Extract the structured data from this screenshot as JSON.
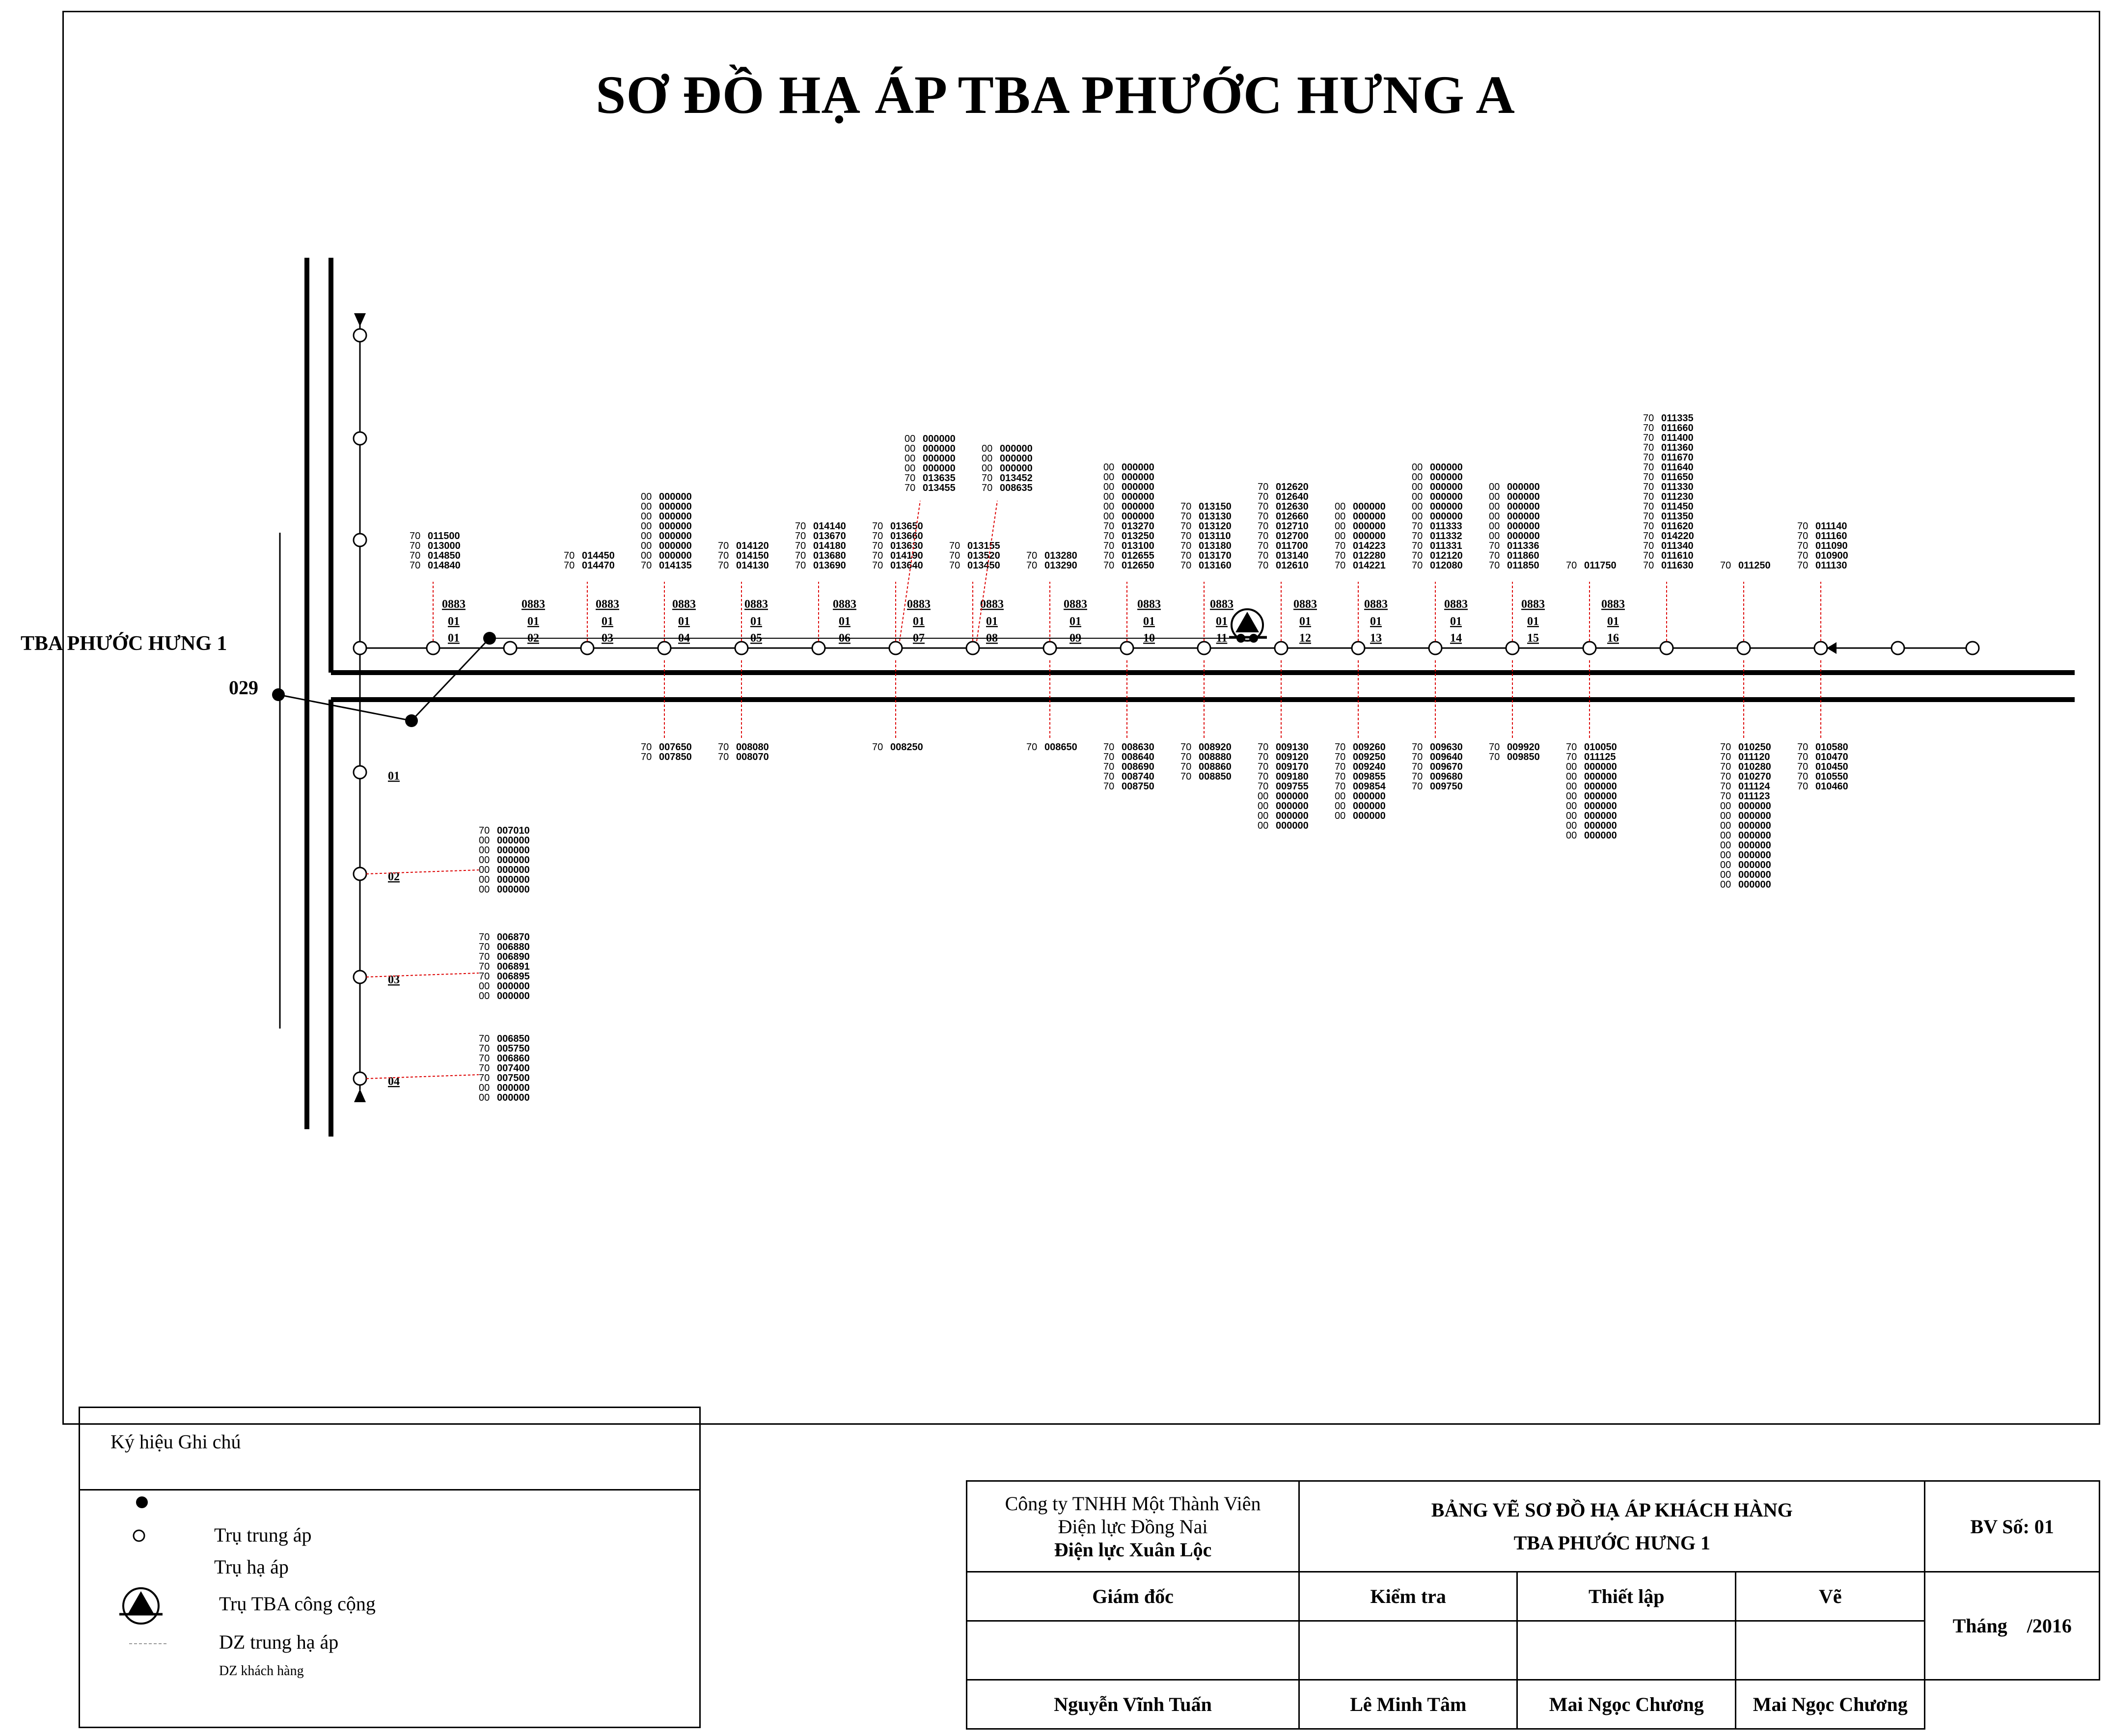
{
  "title": "SƠ ĐỒ HẠ ÁP TBA PHƯỚC HƯNG A",
  "station_label": "TBA PHƯỚC HƯNG 1",
  "feeder_label": "029",
  "pole_code": "0883",
  "pole_group": "01",
  "top_poles": [
    {
      "num": "01",
      "above": [
        "70 011500",
        "70 013000",
        "70 014850",
        "70 014840"
      ],
      "below": []
    },
    {
      "num": "02",
      "above": [],
      "below": []
    },
    {
      "num": "03",
      "above": [
        "70 014450",
        "70 014470"
      ],
      "below": []
    },
    {
      "num": "04",
      "above": [
        "00 000000",
        "00 000000",
        "00 000000",
        "00 000000",
        "00 000000",
        "00 000000",
        "00 000000",
        "70 014135"
      ],
      "below": [
        "70 007650",
        "70 007850"
      ]
    },
    {
      "num": "05",
      "above": [
        "70 014120",
        "70 014150",
        "70 014130"
      ],
      "below": [
        "70 008080",
        "70 008070"
      ]
    },
    {
      "num": "06",
      "above": [
        "70 014140",
        "70 013670",
        "70 014180",
        "70 013680",
        "70 013690"
      ],
      "below": []
    },
    {
      "num": "07",
      "above": [
        "70 013650",
        "70 013660",
        "70 013630",
        "70 014190",
        "70 013640"
      ],
      "above2": [
        "00 000000",
        "00 000000",
        "00 000000",
        "00 000000",
        "70 013635",
        "70 013455"
      ],
      "below": [
        "70 008250"
      ]
    },
    {
      "num": "08",
      "above": [
        "70 013155",
        "70 013520",
        "70 013450"
      ],
      "above2": [
        "00 000000",
        "00 000000",
        "00 000000",
        "70 013452",
        "70 008635"
      ],
      "below": []
    },
    {
      "num": "09",
      "above": [
        "70 013280",
        "70 013290"
      ],
      "below": [
        "70 008650"
      ]
    },
    {
      "num": "10",
      "above": [
        "00 000000",
        "00 000000",
        "00 000000",
        "00 000000",
        "00 000000",
        "00 000000",
        "70 013270",
        "70 013250",
        "70 013100",
        "70 012655",
        "70 012650"
      ],
      "below": [
        "70 008630",
        "70 008640",
        "70 008690",
        "70 008740",
        "70 008750"
      ]
    },
    {
      "num": "11",
      "above": [
        "70 013150",
        "70 013130",
        "70 013120",
        "70 013110",
        "70 013180",
        "70 013170",
        "70 013160"
      ],
      "below": [
        "70 008920",
        "70 008880",
        "70 008860",
        "70 008850"
      ]
    },
    {
      "num": "12",
      "above": [
        "70 012620",
        "70 012640",
        "70 012630",
        "70 012660",
        "70 012710",
        "70 012700",
        "70 011700",
        "70 013140",
        "70 012610"
      ],
      "below": [
        "70 009130",
        "70 009120",
        "70 009170",
        "70 009180",
        "70 009755",
        "00 000000",
        "00 000000",
        "00 000000",
        "00 000000"
      ]
    },
    {
      "num": "13",
      "above": [
        "00 000000",
        "00 000000",
        "00 000000",
        "00 000000",
        "70 014223",
        "70 012280",
        "70 014221"
      ],
      "below": [
        "70 009260",
        "70 009250",
        "70 009240",
        "70 009855",
        "70 009854",
        "00 000000",
        "00 000000",
        "00 000000"
      ]
    },
    {
      "num": "14",
      "above": [
        "00 000000",
        "00 000000",
        "00 000000",
        "00 000000",
        "00 000000",
        "00 000000",
        "70 011333",
        "70 011332",
        "70 011331",
        "70 012120",
        "70 012080"
      ],
      "below": [
        "70 009630",
        "70 009640",
        "70 009670",
        "70 009680",
        "70 009750"
      ]
    },
    {
      "num": "15",
      "above": [
        "00 000000",
        "00 000000",
        "00 000000",
        "00 000000",
        "00 000000",
        "00 000000",
        "70 011336",
        "70 011860",
        "70 011850"
      ],
      "below": [
        "70 009920",
        "70 009850"
      ]
    },
    {
      "num": "16",
      "above": [
        "70 011750"
      ],
      "below": [
        "70 010050",
        "70 011125",
        "00 000000",
        "00 000000",
        "00 000000",
        "00 000000",
        "00 000000",
        "00 000000",
        "00 000000",
        "00 000000"
      ]
    },
    {
      "num": "",
      "above": [
        "70 011335",
        "70 011660",
        "70 011400",
        "70 011360",
        "70 011670",
        "70 011640",
        "70 011650",
        "70 011330",
        "70 011230",
        "70 011450",
        "70 011350",
        "70 011620",
        "70 014220",
        "70 011340",
        "70 011610",
        "70 011630"
      ],
      "below": []
    },
    {
      "num": "",
      "above": [
        "70 011250"
      ],
      "below": [
        "70 010250",
        "70 011120",
        "70 010280",
        "70 010270",
        "70 011124",
        "70 011123",
        "00 000000",
        "00 000000",
        "00 000000",
        "00 000000",
        "00 000000",
        "00 000000",
        "00 000000",
        "00 000000",
        "00 000000"
      ]
    },
    {
      "num": "",
      "above": [
        "70 011140",
        "70 011160",
        "70 011090",
        "70 010900",
        "70 011130"
      ],
      "below": [
        "70 010580",
        "70 010470",
        "70 010450",
        "70 010550",
        "70 010460"
      ]
    }
  ],
  "left_poles": [
    {
      "num": "01",
      "meters": []
    },
    {
      "num": "02",
      "meters": [
        "70 007010",
        "00 000000",
        "00 000000",
        "00 000000",
        "00 000000",
        "00 000000",
        "00 000000"
      ]
    },
    {
      "num": "03",
      "meters": [
        "70 006870",
        "70 006880",
        "70 006890",
        "70 006891",
        "70 006895",
        "00 000000",
        "00 000000"
      ]
    },
    {
      "num": "04",
      "meters": [
        "70 006850",
        "70 005750",
        "70 006860",
        "70 007400",
        "70 007500",
        "00 000000",
        "00 000000"
      ]
    }
  ],
  "legend": {
    "header": "Ký hiệu   Ghi chú",
    "items": [
      "Trụ trung áp",
      "Trụ hạ áp",
      "Trụ TBA công cộng",
      "DZ trung hạ áp",
      "DZ khách hàng"
    ]
  },
  "title_block": {
    "company_1": "Công ty TNHH Một Thành Viên",
    "company_2": "Điện lực Đồng Nai",
    "company_3": "Điện lực Xuân Lộc",
    "drawing_title_1": "BẢNG VẼ SƠ ĐỒ HẠ ÁP KHÁCH HÀNG",
    "drawing_title_2": "TBA PHƯỚC HƯNG 1",
    "drawing_no": "BV Số: 01",
    "role_director": "Giám đốc",
    "role_check": "Kiểm tra",
    "role_design": "Thiết lập",
    "role_draw": "Vẽ",
    "date_month": "Tháng",
    "date_year": "/2016",
    "name_director": "Nguyễn Vĩnh Tuấn",
    "name_check": "Lê Minh Tâm",
    "name_design": "Mai Ngọc Chương",
    "name_draw": "Mai Ngọc Chương"
  }
}
